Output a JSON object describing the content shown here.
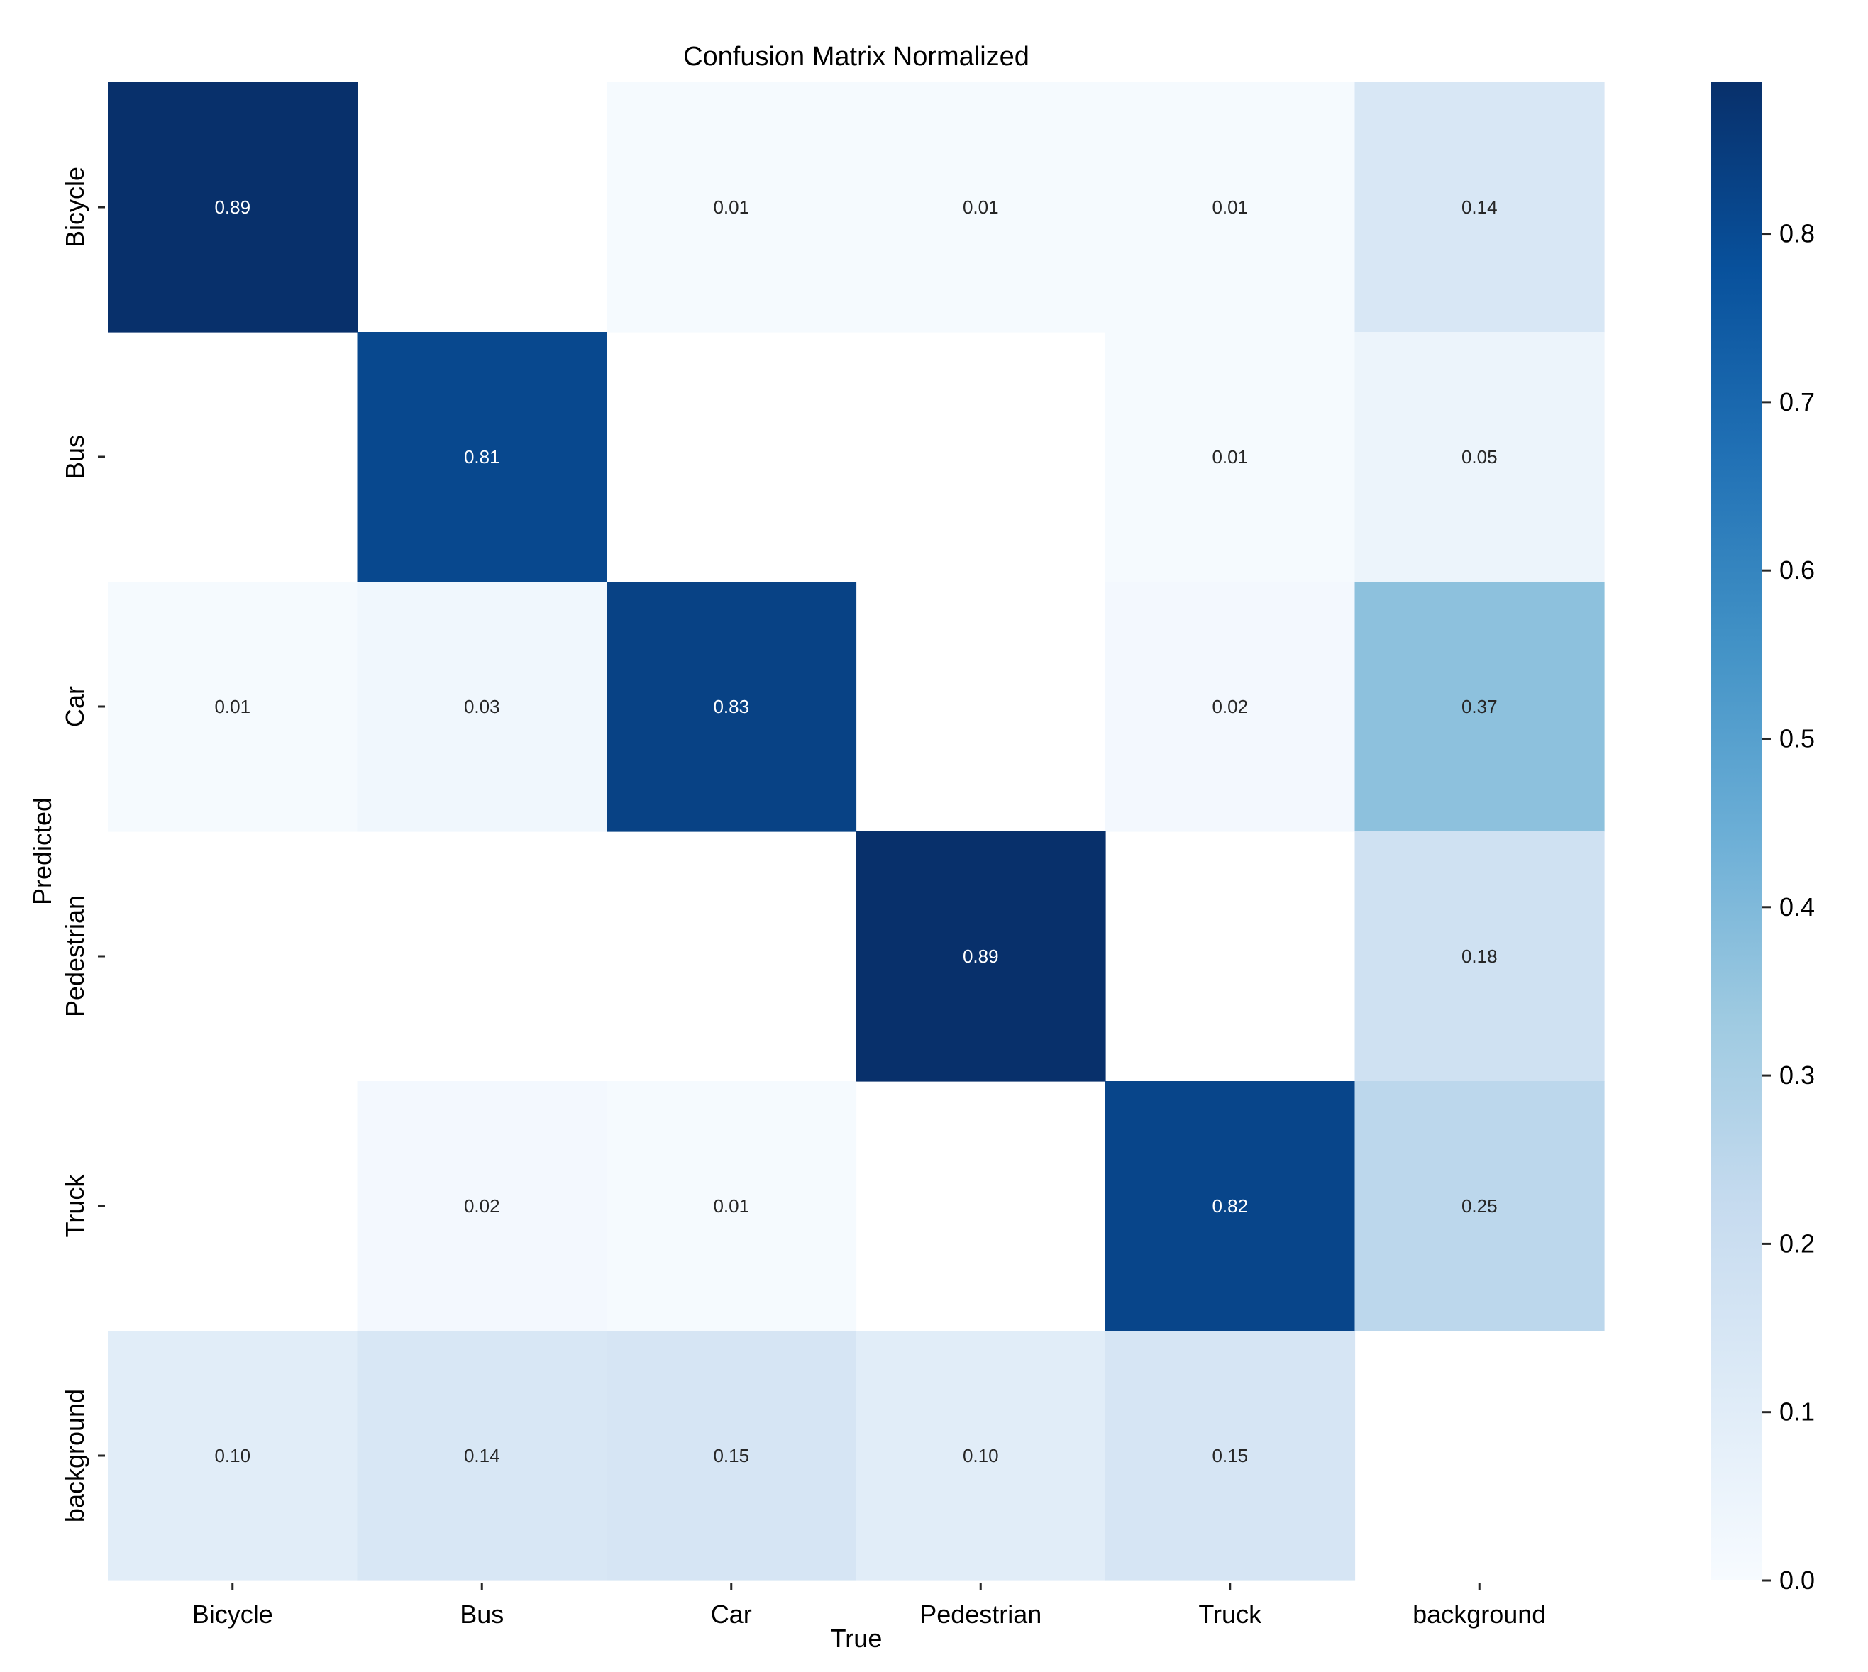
{
  "chart_data": {
    "type": "heatmap",
    "title": "Confusion Matrix Normalized",
    "xlabel": "True",
    "ylabel": "Predicted",
    "x_categories": [
      "Bicycle",
      "Bus",
      "Car",
      "Pedestrian",
      "Truck",
      "background"
    ],
    "y_categories": [
      "Bicycle",
      "Bus",
      "Car",
      "Pedestrian",
      "Truck",
      "background"
    ],
    "values": [
      [
        0.89,
        null,
        0.01,
        0.01,
        0.01,
        0.14
      ],
      [
        null,
        0.81,
        null,
        null,
        0.01,
        0.05
      ],
      [
        0.01,
        0.03,
        0.83,
        null,
        0.02,
        0.37
      ],
      [
        null,
        null,
        null,
        0.89,
        null,
        0.18
      ],
      [
        null,
        0.02,
        0.01,
        null,
        0.82,
        0.25
      ],
      [
        0.1,
        0.14,
        0.15,
        0.1,
        0.15,
        null
      ]
    ],
    "colorbar": {
      "range": [
        0.0,
        0.89
      ],
      "ticks": [
        0.0,
        0.1,
        0.2,
        0.3,
        0.4,
        0.5,
        0.6,
        0.7,
        0.8
      ],
      "colormap": "Blues"
    },
    "annotation_format": "0.00"
  },
  "colors": {
    "cmap": [
      "#f7fbff",
      "#deebf7",
      "#c6dbef",
      "#9ecae1",
      "#6baed6",
      "#4292c6",
      "#2171b5",
      "#08519c",
      "#08306b"
    ],
    "light_text": "#ffffff",
    "dark_text": "#262626",
    "axis_text": "#000000",
    "tick_color": "#262626"
  }
}
